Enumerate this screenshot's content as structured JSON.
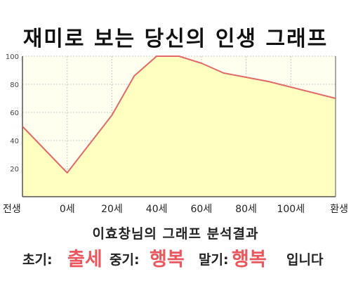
{
  "title": "재미로 보는 당신의 인생 그래프",
  "chart_data": {
    "type": "area",
    "x": [
      -20,
      0,
      20,
      30,
      40,
      50,
      60,
      70,
      80,
      90,
      100,
      120
    ],
    "values": [
      50,
      17,
      58,
      86,
      100,
      100,
      95,
      88,
      85,
      82,
      78,
      70
    ],
    "x_tick_values": [
      -20,
      0,
      20,
      40,
      60,
      80,
      100,
      120
    ],
    "x_tick_labels": [
      "전생",
      "0세",
      "20세",
      "40세",
      "60세",
      "80세",
      "100세",
      "환생"
    ],
    "y_ticks": [
      20,
      40,
      60,
      80,
      100
    ],
    "ylim": [
      0,
      100
    ],
    "xlim": [
      -20,
      120
    ],
    "grid": true,
    "colors": {
      "line": "#e06a6a",
      "fill": "#ffffc0",
      "background": "#fffff0",
      "grid": "#c8c8c8",
      "axis": "#555555",
      "tick_text": "#444444"
    }
  },
  "result": {
    "heading": "이효창님의 그래프 분석결과",
    "early_label": "초기:",
    "early_value": "출세",
    "middle_label": "중기:",
    "middle_value": "행복",
    "late_label": "말기:",
    "late_value": "행복",
    "ending": "입니다"
  }
}
